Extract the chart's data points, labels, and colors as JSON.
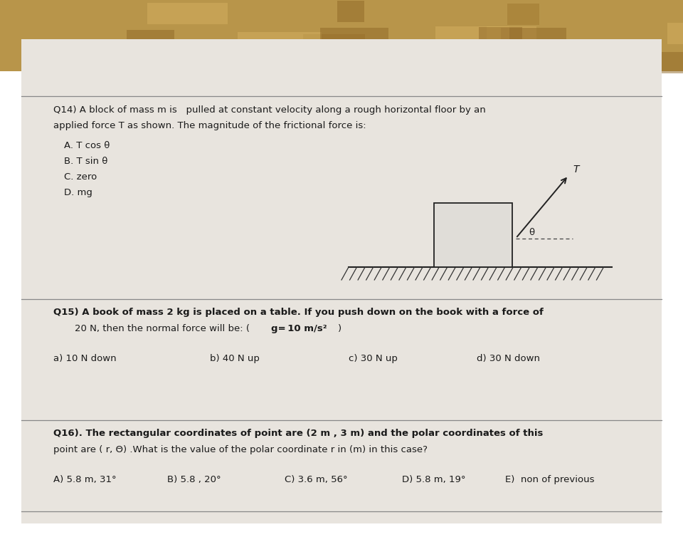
{
  "bg_color_top": "#c8a85a",
  "bg_color_paper": "#e8e4de",
  "paper_color": "#e8e4de",
  "text_color": "#1a1a1a",
  "q14_line1": "Q14) A block of mass m is   pulled at constant velocity along a rough horizontal floor by an",
  "q14_line2": "applied force T as shown. The magnitude of the frictional force is:",
  "q14_opts": [
    "A. T cos θ",
    "B. T sin θ",
    "C. zero",
    "D. mg"
  ],
  "q15_line1": "Q15) A book of mass 2 kg is placed on a table. If you push down on the book with a force of",
  "q15_line2a": "20 N, then the normal force will be: (",
  "q15_line2b": "g",
  "q15_line2c": " = 10 m/s",
  "q15_line2d": "2",
  "q15_line2e": ")",
  "q15_opts": [
    "a) 10 N down",
    "b) 40 N up",
    "c) 30 N up",
    "d) 30 N down"
  ],
  "q16_line1": "Q16). The rectangular coordinates of point are (2 m , 3 m) and the polar coordinates of this",
  "q16_line2": "point are ( r, Θ) .What is the value of the polar coordinate r in (m) in this case?",
  "q16_opts": [
    "A) 5.8 m, 31°",
    "B) 5.8 , 20°",
    "C) 3.6 m, 56°",
    "D) 5.8 m, 19°",
    "E)  non of previous"
  ],
  "sep_color": "#888888",
  "hatch_color": "#333333",
  "block_color": "#e0ddd8"
}
